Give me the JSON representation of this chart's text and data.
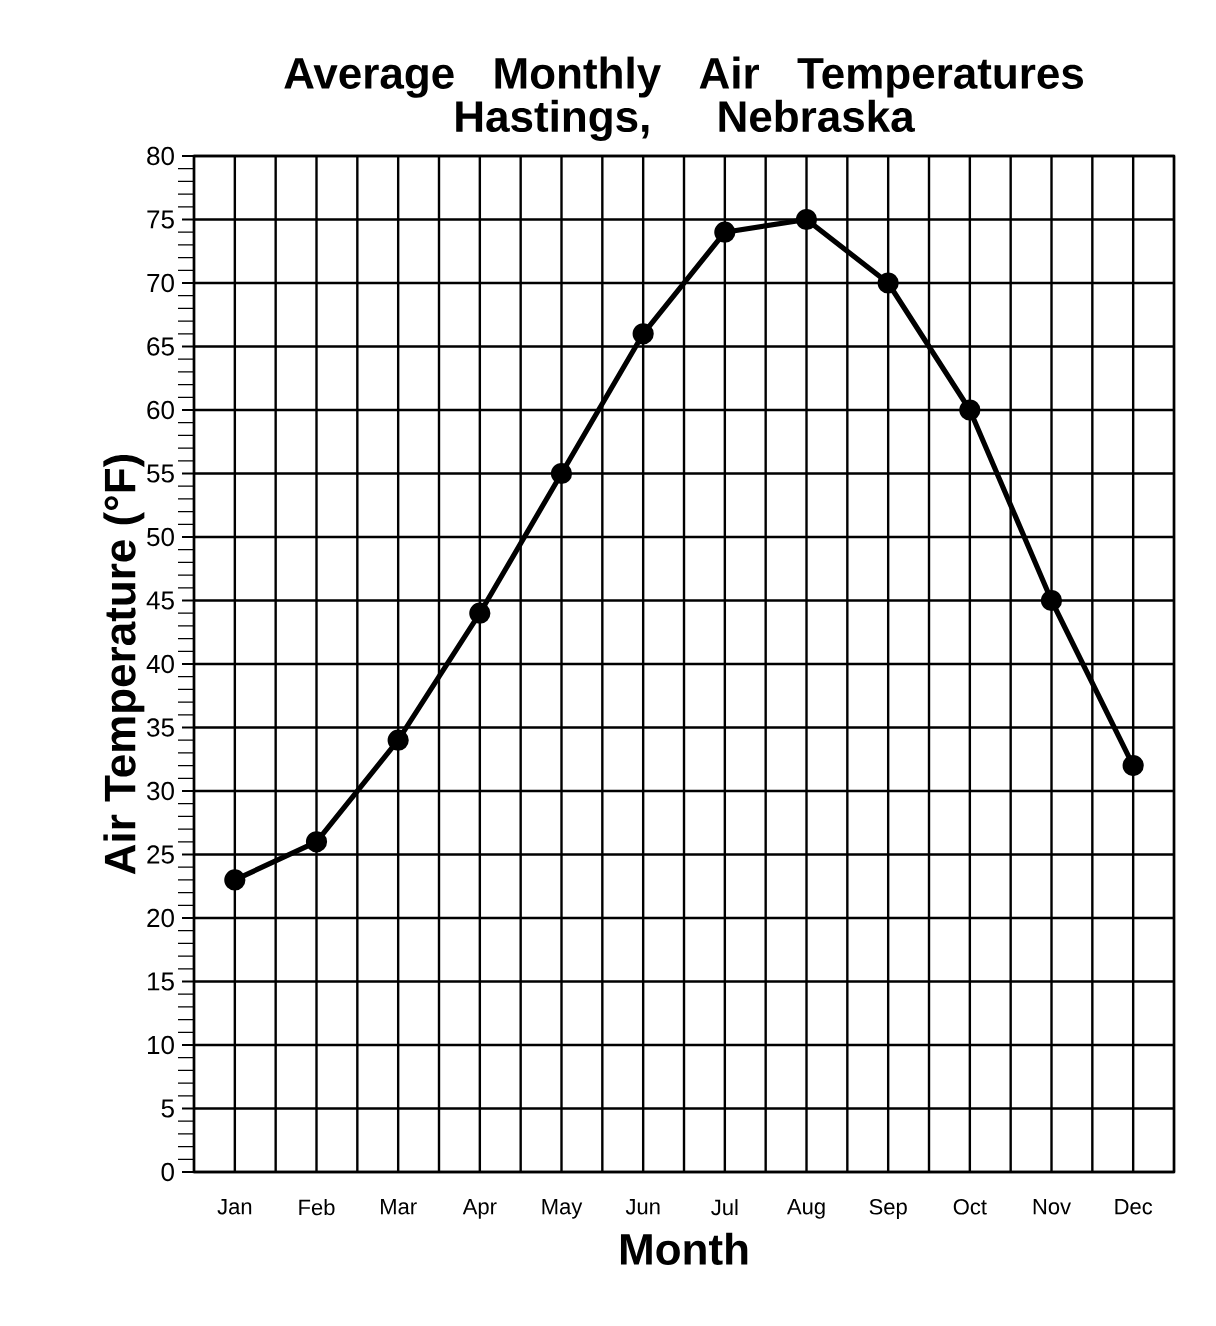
{
  "chart_data": {
    "type": "line",
    "title": "Average Monthly Air Temperatures\nHastings, Nebraska",
    "xlabel": "Month",
    "ylabel": "Air Temperature (°F)",
    "categories": [
      "Jan",
      "Feb",
      "Mar",
      "Apr",
      "May",
      "Jun",
      "Jul",
      "Aug",
      "Sep",
      "Oct",
      "Nov",
      "Dec"
    ],
    "series": [
      {
        "color": "#000000",
        "values": [
          23,
          26,
          34,
          44,
          55,
          66,
          74,
          75,
          70,
          60,
          45,
          32
        ]
      }
    ],
    "ylim": [
      0,
      80
    ],
    "yticks": [
      0,
      5,
      10,
      15,
      20,
      25,
      30,
      35,
      40,
      45,
      50,
      55,
      60,
      65,
      70,
      75,
      80
    ],
    "grid": true,
    "marker": "circle",
    "line_style": "solid"
  }
}
